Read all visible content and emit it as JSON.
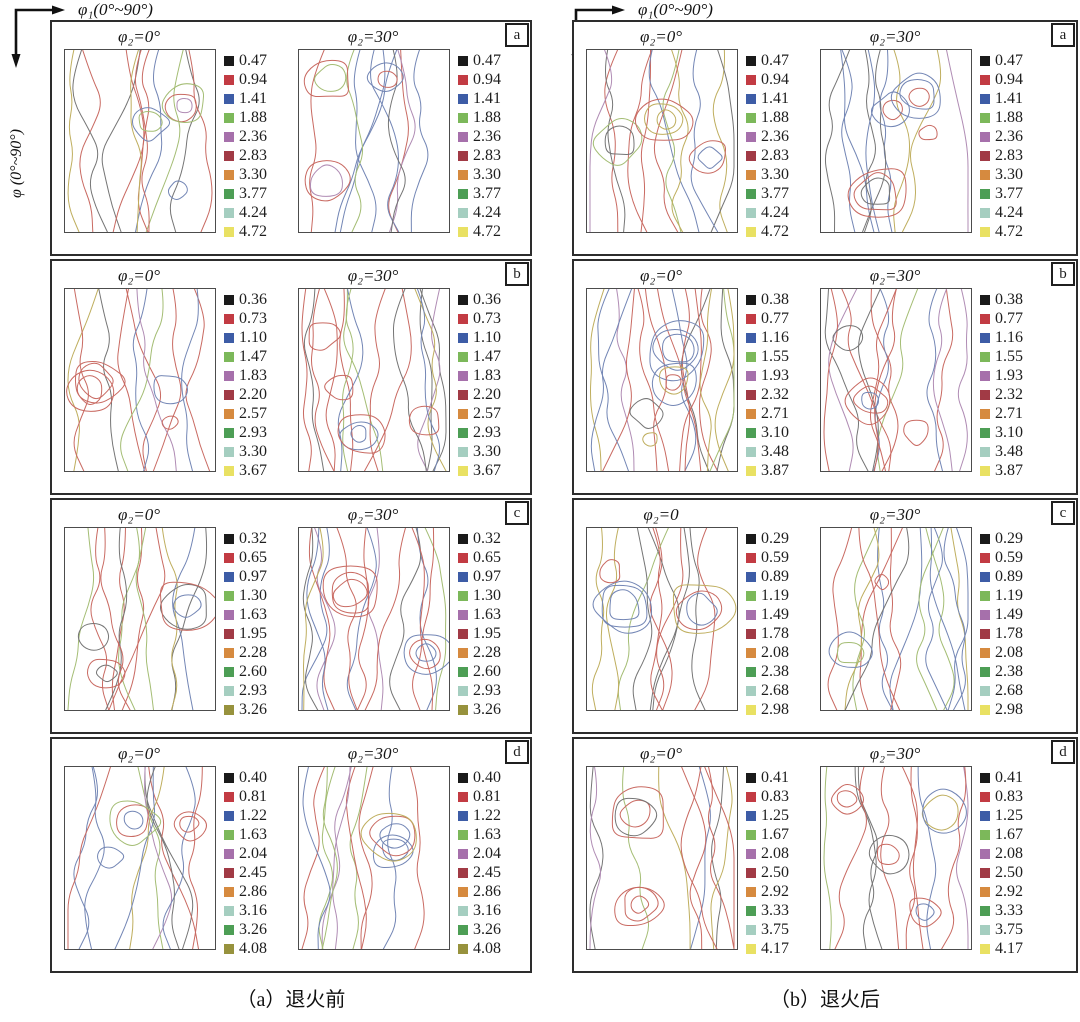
{
  "figure": {
    "axis": {
      "x_label": "φ₁(0°~90°)",
      "y_label": "φ (0°~90°)"
    },
    "columns": [
      {
        "id": "before-annealing",
        "caption": "（a）退火前",
        "rows": [
          {
            "letter": "a",
            "titles": [
              "φ₂=0°",
              "φ₂=30°"
            ],
            "legend_values": [
              "0.47",
              "0.94",
              "1.41",
              "1.88",
              "2.36",
              "2.83",
              "3.30",
              "3.77",
              "4.24",
              "4.72"
            ],
            "legend_colors": [
              "#1a1a1a",
              "#c23b43",
              "#3d5ca6",
              "#7cb85a",
              "#a670ab",
              "#a13a45",
              "#d68a3f",
              "#4d9e55",
              "#a5cec0",
              "#e9e163"
            ]
          },
          {
            "letter": "b",
            "titles": [
              "φ₂=0°",
              "φ₂=30°"
            ],
            "legend_values": [
              "0.36",
              "0.73",
              "1.10",
              "1.47",
              "1.83",
              "2.20",
              "2.57",
              "2.93",
              "3.30",
              "3.67"
            ],
            "legend_colors": [
              "#1a1a1a",
              "#c23b43",
              "#3d5ca6",
              "#7cb85a",
              "#a670ab",
              "#a13a45",
              "#d68a3f",
              "#4d9e55",
              "#a5cec0",
              "#e9e163"
            ]
          },
          {
            "letter": "c",
            "titles": [
              "φ₂=0°",
              "φ₂=30°"
            ],
            "legend_values": [
              "0.32",
              "0.65",
              "0.97",
              "1.30",
              "1.63",
              "1.95",
              "2.28",
              "2.60",
              "2.93",
              "3.26"
            ],
            "legend_colors": [
              "#1a1a1a",
              "#c23b43",
              "#3d5ca6",
              "#7cb85a",
              "#a670ab",
              "#a13a45",
              "#d68a3f",
              "#4d9e55",
              "#a5cec0",
              "#97923d"
            ]
          },
          {
            "letter": "d",
            "titles": [
              "φ₂=0°",
              "φ₂=30°"
            ],
            "legend_values": [
              "0.40",
              "0.81",
              "1.22",
              "1.63",
              "2.04",
              "2.45",
              "2.86",
              "3.16",
              "3.26",
              "4.08"
            ],
            "legend_colors": [
              "#1a1a1a",
              "#c23b43",
              "#3d5ca6",
              "#7cb85a",
              "#a670ab",
              "#a13a45",
              "#d68a3f",
              "#a5cec0",
              "#4d9e55",
              "#97923d"
            ]
          }
        ]
      },
      {
        "id": "after-annealing",
        "caption": "（b）退火后",
        "rows": [
          {
            "letter": "a",
            "titles": [
              "φ₂=0°",
              "φ₂=30°"
            ],
            "legend_values": [
              "0.47",
              "0.94",
              "1.41",
              "1.88",
              "2.36",
              "2.83",
              "3.30",
              "3.77",
              "4.24",
              "4.72"
            ],
            "legend_colors": [
              "#1a1a1a",
              "#c23b43",
              "#3d5ca6",
              "#7cb85a",
              "#a670ab",
              "#a13a45",
              "#d68a3f",
              "#4d9e55",
              "#a5cec0",
              "#e9e163"
            ]
          },
          {
            "letter": "b",
            "titles": [
              "φ₂=0°",
              "φ₂=30°"
            ],
            "legend_values": [
              "0.38",
              "0.77",
              "1.16",
              "1.55",
              "1.93",
              "2.32",
              "2.71",
              "3.10",
              "3.48",
              "3.87"
            ],
            "legend_colors": [
              "#1a1a1a",
              "#c23b43",
              "#3d5ca6",
              "#7cb85a",
              "#a670ab",
              "#a13a45",
              "#d68a3f",
              "#4d9e55",
              "#a5cec0",
              "#e9e163"
            ]
          },
          {
            "letter": "c",
            "titles": [
              "φ₂=0",
              "φ₂=30°"
            ],
            "legend_values": [
              "0.29",
              "0.59",
              "0.89",
              "1.19",
              "1.49",
              "1.78",
              "2.08",
              "2.38",
              "2.68",
              "2.98"
            ],
            "legend_colors": [
              "#1a1a1a",
              "#c23b43",
              "#3d5ca6",
              "#7cb85a",
              "#a670ab",
              "#a13a45",
              "#d68a3f",
              "#4d9e55",
              "#a5cec0",
              "#e9e163"
            ]
          },
          {
            "letter": "d",
            "titles": [
              "φ₂=0°",
              "φ₂=30°"
            ],
            "legend_values": [
              "0.41",
              "0.83",
              "1.25",
              "1.67",
              "2.08",
              "2.50",
              "2.92",
              "3.33",
              "3.75",
              "4.17"
            ],
            "legend_colors": [
              "#1a1a1a",
              "#c23b43",
              "#3d5ca6",
              "#7cb85a",
              "#a670ab",
              "#a13a45",
              "#d68a3f",
              "#4d9e55",
              "#a5cec0",
              "#e9e163"
            ]
          }
        ]
      }
    ]
  },
  "chart_data": [
    {
      "type": "contour",
      "panel": "a",
      "condition": "退火前",
      "sections": [
        "φ₂=0°",
        "φ₂=30°"
      ],
      "xlabel": "φ₁(0°~90°)",
      "ylabel": "φ (0°~90°)",
      "levels": [
        0.47,
        0.94,
        1.41,
        1.88,
        2.36,
        2.83,
        3.3,
        3.77,
        4.24,
        4.72
      ]
    },
    {
      "type": "contour",
      "panel": "b",
      "condition": "退火前",
      "sections": [
        "φ₂=0°",
        "φ₂=30°"
      ],
      "xlabel": "φ₁(0°~90°)",
      "ylabel": "φ (0°~90°)",
      "levels": [
        0.36,
        0.73,
        1.1,
        1.47,
        1.83,
        2.2,
        2.57,
        2.93,
        3.3,
        3.67
      ]
    },
    {
      "type": "contour",
      "panel": "c",
      "condition": "退火前",
      "sections": [
        "φ₂=0°",
        "φ₂=30°"
      ],
      "xlabel": "φ₁(0°~90°)",
      "ylabel": "φ (0°~90°)",
      "levels": [
        0.32,
        0.65,
        0.97,
        1.3,
        1.63,
        1.95,
        2.28,
        2.6,
        2.93,
        3.26
      ]
    },
    {
      "type": "contour",
      "panel": "d",
      "condition": "退火前",
      "sections": [
        "φ₂=0°",
        "φ₂=30°"
      ],
      "xlabel": "φ₁(0°~90°)",
      "ylabel": "φ (0°~90°)",
      "levels": [
        0.4,
        0.81,
        1.22,
        1.63,
        2.04,
        2.45,
        2.86,
        3.16,
        3.26,
        4.08
      ]
    },
    {
      "type": "contour",
      "panel": "a",
      "condition": "退火后",
      "sections": [
        "φ₂=0°",
        "φ₂=30°"
      ],
      "xlabel": "φ₁(0°~90°)",
      "ylabel": "φ (0°~90°)",
      "levels": [
        0.47,
        0.94,
        1.41,
        1.88,
        2.36,
        2.83,
        3.3,
        3.77,
        4.24,
        4.72
      ]
    },
    {
      "type": "contour",
      "panel": "b",
      "condition": "退火后",
      "sections": [
        "φ₂=0°",
        "φ₂=30°"
      ],
      "xlabel": "φ₁(0°~90°)",
      "ylabel": "φ (0°~90°)",
      "levels": [
        0.38,
        0.77,
        1.16,
        1.55,
        1.93,
        2.32,
        2.71,
        3.1,
        3.48,
        3.87
      ]
    },
    {
      "type": "contour",
      "panel": "c",
      "condition": "退火后",
      "sections": [
        "φ₂=0",
        "φ₂=30°"
      ],
      "xlabel": "φ₁(0°~90°)",
      "ylabel": "φ (0°~90°)",
      "levels": [
        0.29,
        0.59,
        0.89,
        1.19,
        1.49,
        1.78,
        2.08,
        2.38,
        2.68,
        2.98
      ]
    },
    {
      "type": "contour",
      "panel": "d",
      "condition": "退火后",
      "sections": [
        "φ₂=0°",
        "φ₂=30°"
      ],
      "xlabel": "φ₁(0°~90°)",
      "ylabel": "φ (0°~90°)",
      "levels": [
        0.41,
        0.83,
        1.25,
        1.67,
        2.08,
        2.5,
        2.92,
        3.33,
        3.75,
        4.17
      ]
    }
  ]
}
